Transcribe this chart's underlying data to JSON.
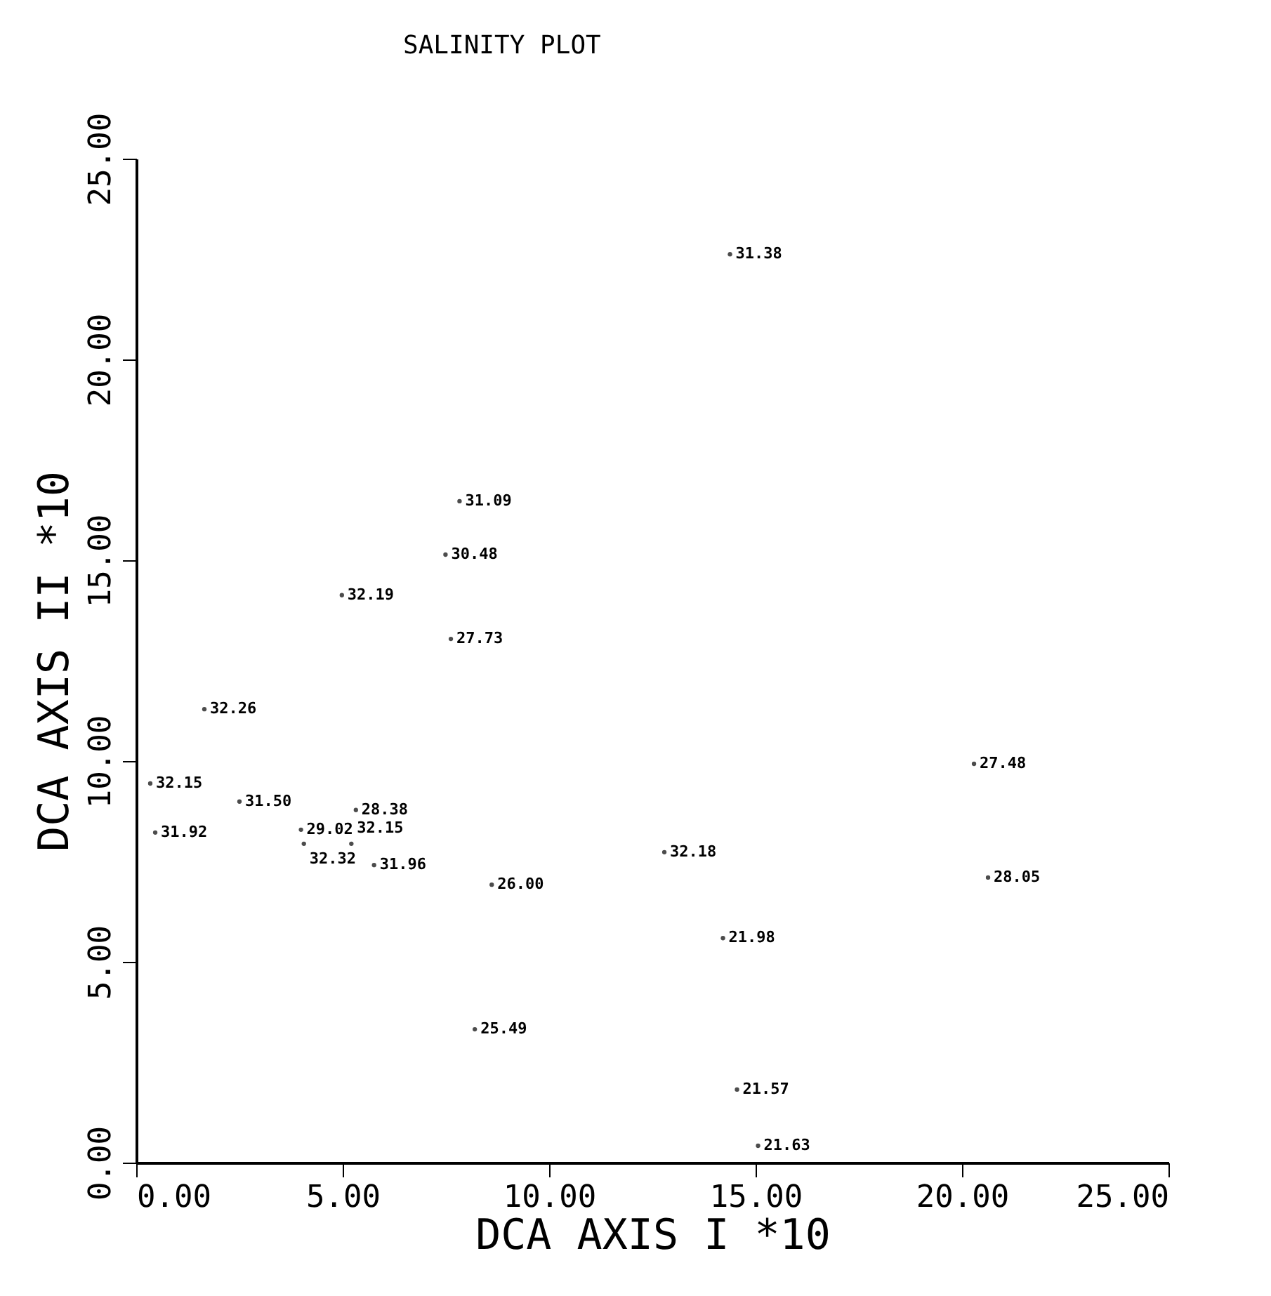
{
  "chart_data": {
    "type": "scatter",
    "title": "SALINITY PLOT",
    "xlabel": "DCA AXIS I *10",
    "ylabel": "DCA AXIS II *10",
    "xlim": [
      0,
      25
    ],
    "ylim": [
      0,
      25
    ],
    "xticks": [
      {
        "value": 0,
        "label": "0.00"
      },
      {
        "value": 5,
        "label": "5.00"
      },
      {
        "value": 10,
        "label": "10.00"
      },
      {
        "value": 15,
        "label": "15.00"
      },
      {
        "value": 20,
        "label": "20.00"
      },
      {
        "value": 25,
        "label": "25.00"
      }
    ],
    "yticks": [
      {
        "value": 0,
        "label": "0.00"
      },
      {
        "value": 5,
        "label": "5.00"
      },
      {
        "value": 10,
        "label": "10.00"
      },
      {
        "value": 15,
        "label": "15.00"
      },
      {
        "value": 20,
        "label": "20.00"
      },
      {
        "value": 25,
        "label": "25.00"
      }
    ],
    "marker": "circle",
    "series": [
      {
        "color": "#000000",
        "x": [
          14.38,
          7.83,
          7.49,
          4.98,
          7.62,
          1.65,
          0.34,
          2.5,
          5.32,
          3.99,
          4.06,
          5.21,
          5.76,
          8.61,
          0.46,
          12.79,
          14.21,
          8.2,
          14.55,
          15.06,
          20.29,
          20.63
        ],
        "values": [
          22.62,
          16.47,
          15.14,
          14.13,
          13.04,
          11.29,
          9.44,
          8.99,
          8.78,
          8.29,
          7.94,
          7.94,
          7.41,
          6.92,
          8.22,
          7.73,
          5.59,
          3.32,
          1.82,
          0.42,
          9.93,
          7.1
        ]
      }
    ],
    "annotations": [
      {
        "text": "31.38",
        "x": 14.38,
        "y": 22.62
      },
      {
        "text": "31.09",
        "x": 7.83,
        "y": 16.47
      },
      {
        "text": "30.48",
        "x": 7.49,
        "y": 15.14
      },
      {
        "text": "32.19",
        "x": 4.98,
        "y": 14.13
      },
      {
        "text": "27.73",
        "x": 7.62,
        "y": 13.04
      },
      {
        "text": "32.26",
        "x": 1.65,
        "y": 11.29
      },
      {
        "text": "32.15",
        "x": 0.34,
        "y": 9.44
      },
      {
        "text": "31.50",
        "x": 2.5,
        "y": 8.99
      },
      {
        "text": "28.38",
        "x": 5.32,
        "y": 8.78
      },
      {
        "text": "29.02",
        "x": 3.99,
        "y": 8.29
      },
      {
        "text": "32.32",
        "x": 4.06,
        "y": 7.94
      },
      {
        "text": "32.15",
        "x": 5.21,
        "y": 7.94
      },
      {
        "text": "31.96",
        "x": 5.76,
        "y": 7.41
      },
      {
        "text": "26.00",
        "x": 8.61,
        "y": 6.92
      },
      {
        "text": "31.92",
        "x": 0.46,
        "y": 8.22
      },
      {
        "text": "32.18",
        "x": 12.79,
        "y": 7.73
      },
      {
        "text": "21.98",
        "x": 14.21,
        "y": 5.59
      },
      {
        "text": "25.49",
        "x": 8.2,
        "y": 3.32
      },
      {
        "text": "21.57",
        "x": 14.55,
        "y": 1.82
      },
      {
        "text": "21.63",
        "x": 15.06,
        "y": 0.42
      },
      {
        "text": "27.48",
        "x": 20.29,
        "y": 9.93
      },
      {
        "text": "28.05",
        "x": 20.63,
        "y": 7.1
      }
    ]
  }
}
